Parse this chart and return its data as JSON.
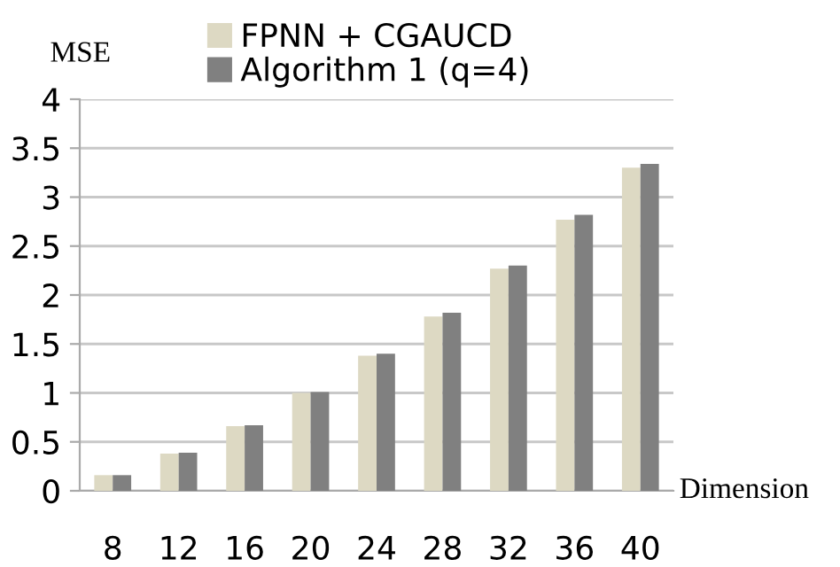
{
  "chart_data": {
    "type": "bar",
    "categories": [
      "8",
      "12",
      "16",
      "20",
      "24",
      "28",
      "32",
      "36",
      "40"
    ],
    "series": [
      {
        "name": "FPNN + CGAUCD",
        "color": "#ddd9c3",
        "values": [
          0.16,
          0.38,
          0.66,
          1.0,
          1.38,
          1.78,
          2.27,
          2.77,
          3.3
        ]
      },
      {
        "name": "Algorithm 1 (q=4)",
        "color": "#808080",
        "values": [
          0.16,
          0.39,
          0.67,
          1.01,
          1.4,
          1.82,
          2.3,
          2.82,
          3.34
        ]
      }
    ],
    "xlabel": "Dimension",
    "ylabel": "MSE",
    "ylim": [
      0,
      4
    ],
    "yticks": [
      0,
      0.5,
      1,
      1.5,
      2,
      2.5,
      3,
      3.5,
      4
    ],
    "grid": "y",
    "legend": "top"
  }
}
